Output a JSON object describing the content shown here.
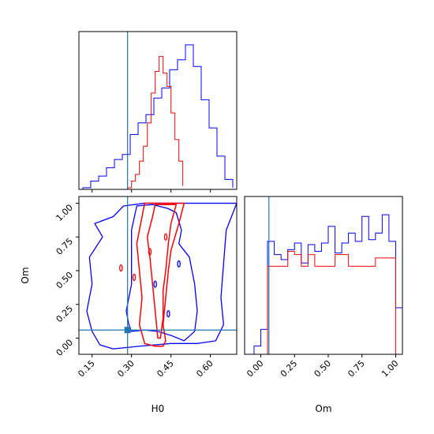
{
  "chart_data": {
    "type": "corner",
    "params": [
      "H0",
      "Om"
    ],
    "truth": {
      "H0": 0.285,
      "Om": 0.06
    },
    "colors": {
      "series_a": "#0000ff",
      "series_b": "#ff0000",
      "truth": "#1f77b4"
    },
    "axes": {
      "H0": {
        "xlabel": "H0",
        "xlim": [
          0.1,
          0.7
        ],
        "ticks": [
          0.15,
          0.3,
          0.45,
          0.6
        ],
        "tick_labels": [
          "0.15",
          "0.30",
          "0.45",
          "0.60"
        ]
      },
      "Om": {
        "label": "Om",
        "lim": [
          -0.12,
          1.05
        ],
        "ticks": [
          0.0,
          0.25,
          0.5,
          0.75,
          1.0
        ],
        "tick_labels": [
          "0.00",
          "0.25",
          "0.50",
          "0.75",
          "1.00"
        ]
      }
    },
    "hist_H0": {
      "bin_edges_blue": [
        0.115,
        0.145,
        0.175,
        0.205,
        0.235,
        0.265,
        0.295,
        0.325,
        0.355,
        0.385,
        0.415,
        0.445,
        0.475,
        0.505,
        0.535,
        0.565,
        0.595,
        0.625,
        0.655,
        0.685
      ],
      "blue": [
        0.01,
        0.05,
        0.08,
        0.13,
        0.18,
        0.21,
        0.33,
        0.4,
        0.45,
        0.55,
        0.61,
        0.72,
        0.78,
        0.87,
        0.74,
        0.54,
        0.37,
        0.2,
        0.06,
        0.01
      ],
      "bin_edges_red": [
        0.285,
        0.3,
        0.315,
        0.33,
        0.345,
        0.36,
        0.375,
        0.39,
        0.405,
        0.42,
        0.435,
        0.45,
        0.465,
        0.48,
        0.495
      ],
      "red": [
        0.01,
        0.05,
        0.09,
        0.17,
        0.26,
        0.4,
        0.58,
        0.71,
        0.8,
        0.7,
        0.62,
        0.46,
        0.3,
        0.17,
        0.02
      ]
    },
    "hist_Om": {
      "bin_edges": [
        -0.05,
        0.0,
        0.05,
        0.1,
        0.15,
        0.2,
        0.25,
        0.3,
        0.35,
        0.4,
        0.45,
        0.5,
        0.55,
        0.6,
        0.65,
        0.7,
        0.75,
        0.8,
        0.85,
        0.9,
        0.95,
        1.0,
        1.05
      ],
      "blue": [
        0.05,
        0.15,
        0.68,
        0.6,
        0.57,
        0.63,
        0.67,
        0.55,
        0.66,
        0.62,
        0.67,
        0.77,
        0.61,
        0.67,
        0.73,
        0.68,
        0.83,
        0.69,
        0.73,
        0.84,
        0.68,
        0.28
      ],
      "red": [
        0.0,
        0.0,
        0.53,
        0.53,
        0.53,
        0.62,
        0.6,
        0.53,
        0.6,
        0.53,
        0.53,
        0.53,
        0.6,
        0.6,
        0.53,
        0.53,
        0.53,
        0.53,
        0.58,
        0.58,
        0.58,
        0.0
      ]
    },
    "contours_2d": {
      "blue": [
        [
          [
            0.23,
            -0.08
          ],
          [
            0.33,
            -0.06
          ],
          [
            0.45,
            -0.04
          ],
          [
            0.55,
            -0.04
          ],
          [
            0.62,
            -0.02
          ],
          [
            0.65,
            0.1
          ],
          [
            0.64,
            0.3
          ],
          [
            0.65,
            0.55
          ],
          [
            0.66,
            0.8
          ],
          [
            0.7,
            1.0
          ],
          [
            0.55,
            1.0
          ],
          [
            0.45,
            1.0
          ],
          [
            0.35,
            1.0
          ],
          [
            0.27,
            0.98
          ],
          [
            0.23,
            0.9
          ],
          [
            0.16,
            0.85
          ],
          [
            0.19,
            0.75
          ],
          [
            0.14,
            0.6
          ],
          [
            0.15,
            0.4
          ],
          [
            0.13,
            0.2
          ],
          [
            0.15,
            0.05
          ],
          [
            0.18,
            -0.05
          ]
        ],
        [
          [
            0.29,
            0.1
          ],
          [
            0.28,
            0.2
          ],
          [
            0.3,
            0.4
          ],
          [
            0.3,
            0.6
          ],
          [
            0.3,
            0.8
          ],
          [
            0.32,
            0.98
          ],
          [
            0.38,
            0.99
          ],
          [
            0.44,
            0.96
          ],
          [
            0.47,
            0.93
          ],
          [
            0.49,
            0.8
          ],
          [
            0.48,
            0.7
          ],
          [
            0.52,
            0.6
          ],
          [
            0.54,
            0.4
          ],
          [
            0.55,
            0.2
          ],
          [
            0.54,
            0.05
          ],
          [
            0.5,
            -0.02
          ],
          [
            0.45,
            0.02
          ],
          [
            0.4,
            0.05
          ],
          [
            0.35,
            0.06
          ],
          [
            0.3,
            0.05
          ]
        ]
      ],
      "red": [
        [
          [
            0.39,
            -0.06
          ],
          [
            0.35,
            -0.04
          ],
          [
            0.33,
            0.1
          ],
          [
            0.34,
            0.3
          ],
          [
            0.33,
            0.5
          ],
          [
            0.32,
            0.7
          ],
          [
            0.34,
            0.9
          ],
          [
            0.35,
            1.0
          ],
          [
            0.5,
            1.0
          ],
          [
            0.48,
            0.85
          ],
          [
            0.45,
            0.65
          ],
          [
            0.44,
            0.5
          ],
          [
            0.43,
            0.3
          ],
          [
            0.42,
            0.1
          ],
          [
            0.43,
            -0.02
          ],
          [
            0.42,
            -0.06
          ]
        ],
        [
          [
            0.4,
            0.0
          ],
          [
            0.39,
            0.2
          ],
          [
            0.38,
            0.4
          ],
          [
            0.37,
            0.6
          ],
          [
            0.36,
            0.75
          ],
          [
            0.38,
            0.9
          ],
          [
            0.39,
            0.99
          ],
          [
            0.47,
            0.99
          ],
          [
            0.45,
            0.85
          ],
          [
            0.44,
            0.7
          ],
          [
            0.43,
            0.5
          ],
          [
            0.42,
            0.35
          ],
          [
            0.42,
            0.15
          ],
          [
            0.41,
            0.0
          ]
        ]
      ]
    }
  }
}
